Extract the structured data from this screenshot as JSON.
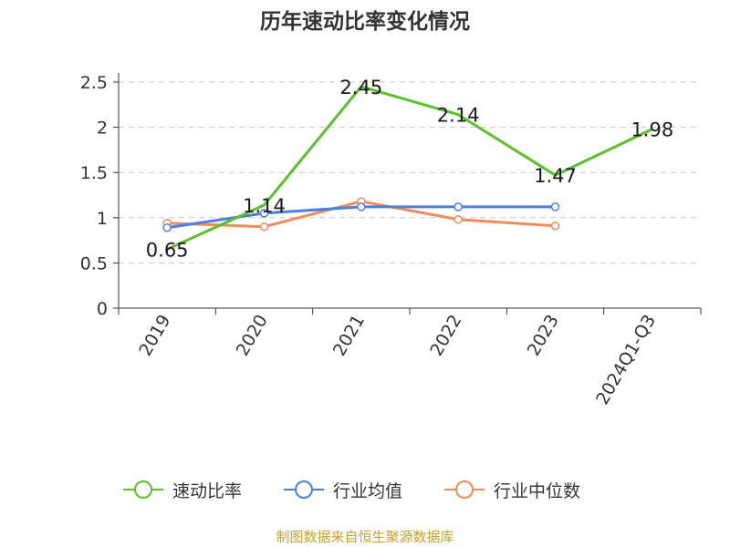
{
  "title": "历年速动比率变化情况",
  "source": "制图数据来自恒生聚源数据库",
  "chart_data": {
    "type": "line",
    "title": "历年速动比率变化情况",
    "categories": [
      "2019",
      "2020",
      "2021",
      "2022",
      "2023",
      "2024Q1-Q3"
    ],
    "ylim": [
      0,
      2.5
    ],
    "yticks": [
      "0",
      "0.5",
      "1",
      "1.5",
      "2",
      "2.5"
    ],
    "grid": true,
    "legend_position": "bottom",
    "series": [
      {
        "name": "速动比率",
        "color": "#5ac12a",
        "values": [
          0.65,
          1.14,
          2.45,
          2.14,
          1.47,
          1.98
        ],
        "labels": [
          "0.65",
          "1.14",
          "2.45",
          "2.14",
          "1.47",
          "1.98"
        ]
      },
      {
        "name": "行业均值",
        "color": "#4a7fe0",
        "values": [
          0.89,
          1.05,
          1.12,
          1.12,
          1.12,
          null
        ]
      },
      {
        "name": "行业中位数",
        "color": "#f08c5a",
        "values": [
          0.94,
          0.9,
          1.18,
          0.98,
          0.91,
          null
        ]
      }
    ]
  }
}
